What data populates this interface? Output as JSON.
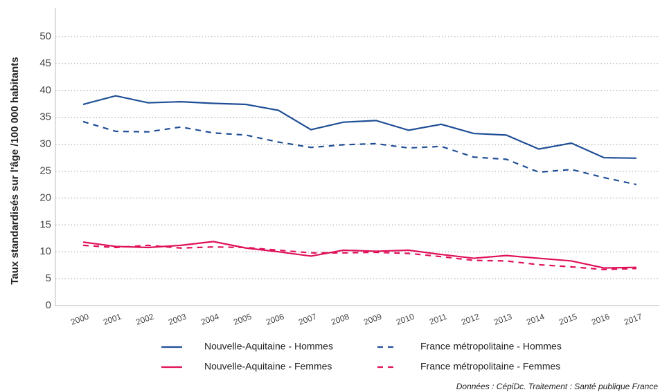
{
  "chart_data": {
    "type": "line",
    "y_label": "Taux standardisés sur l'âge /100 000 habitants",
    "caption": "Données : CépiDc. Traitement : Santé publique France",
    "categories": [
      "2000",
      "2001",
      "2002",
      "2003",
      "2004",
      "2005",
      "2006",
      "2007",
      "2008",
      "2009",
      "2010",
      "2011",
      "2012",
      "2013",
      "2014",
      "2015",
      "2016",
      "2017"
    ],
    "series": [
      {
        "name": "Nouvelle-Aquitaine - Hommes",
        "color": "#1f4e96",
        "dashed": false,
        "values": [
          37.4,
          39.0,
          37.7,
          37.9,
          37.6,
          37.4,
          36.3,
          32.7,
          34.1,
          34.4,
          32.6,
          33.7,
          32.0,
          31.7,
          29.1,
          30.2,
          27.5,
          27.4
        ]
      },
      {
        "name": "France métropolitaine - Hommes",
        "color": "#1f4e96",
        "dashed": true,
        "values": [
          34.2,
          32.4,
          32.3,
          33.2,
          32.1,
          31.7,
          30.4,
          29.4,
          29.9,
          30.1,
          29.3,
          29.6,
          27.6,
          27.2,
          24.8,
          25.3,
          23.8,
          22.5
        ]
      },
      {
        "name": "Nouvelle-Aquitaine - Femmes",
        "color": "#e0105a",
        "dashed": false,
        "values": [
          11.8,
          11.0,
          10.8,
          11.2,
          11.9,
          10.7,
          10.0,
          9.2,
          10.3,
          10.1,
          10.3,
          9.5,
          8.8,
          9.3,
          8.8,
          8.3,
          7.0,
          7.1
        ]
      },
      {
        "name": "France métropolitaine - Femmes",
        "color": "#e0105a",
        "dashed": true,
        "values": [
          11.2,
          10.8,
          11.2,
          10.7,
          10.9,
          10.8,
          10.3,
          9.8,
          9.8,
          9.9,
          9.7,
          9.1,
          8.4,
          8.3,
          7.6,
          7.2,
          6.7,
          6.9
        ]
      }
    ],
    "ylim": [
      0,
      50
    ],
    "yticks": [
      0,
      5,
      10,
      15,
      20,
      25,
      30,
      35,
      40,
      45,
      50
    ],
    "grid": true
  }
}
